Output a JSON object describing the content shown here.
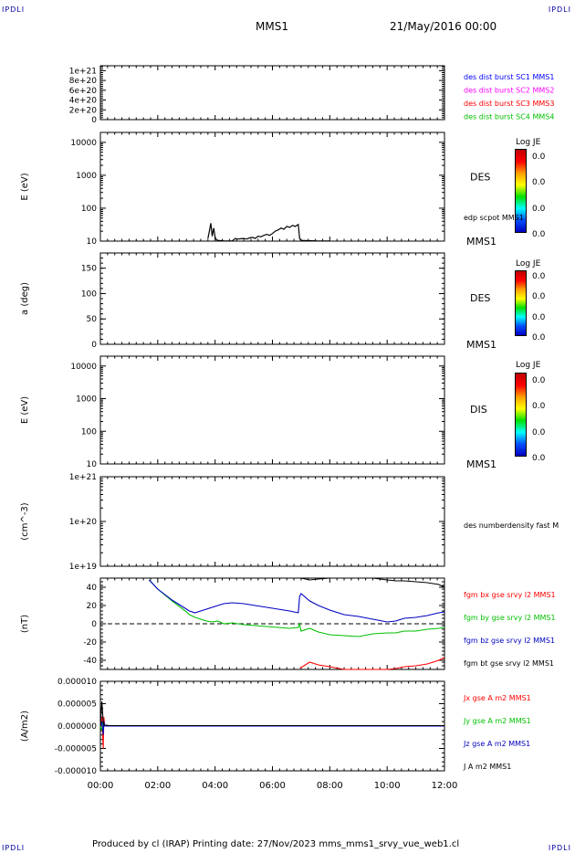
{
  "corners": {
    "top_left": "IPDLI",
    "top_right": "IPDLI",
    "bottom_left": "IPDLI",
    "bottom_right": "IPDLI"
  },
  "header": {
    "spacecraft": "MMS1",
    "date": "21/May/2016 00:00"
  },
  "footer": {
    "text": "Produced by cl (IRAP)   Printing date: 27/Nov/2023   mms_mms1_srvy_vue_web1.cl"
  },
  "time_axis": {
    "ticks": [
      "00:00",
      "02:00",
      "04:00",
      "06:00",
      "08:00",
      "10:00",
      "12:00"
    ],
    "range_hours": [
      0,
      12
    ]
  },
  "colorbars": [
    {
      "title": "Log JE",
      "values": [
        "0.0",
        "0.0",
        "0.0",
        "0.0"
      ]
    },
    {
      "title": "Log JE",
      "values": [
        "0.0",
        "0.0",
        "0.0",
        "0.0"
      ]
    },
    {
      "title": "Log JE",
      "values": [
        "0.0",
        "0.0",
        "0.0",
        "0.0"
      ]
    }
  ],
  "chart_data": [
    {
      "type": "line",
      "panel": "burst-indicator",
      "ylabel": "",
      "ylim": [
        0,
        1.1e+21
      ],
      "ticks": [
        "1e+21",
        "8e+20",
        "6e+20",
        "4e+20",
        "2e+20",
        "0"
      ],
      "tick_values": [
        1e+21,
        8e+20,
        6e+20,
        4e+20,
        2e+20,
        0
      ],
      "reference_line": {
        "y": 0,
        "style": "dashed"
      },
      "legend": [
        {
          "label": "des dist burst SC1 MMS1",
          "color": "#0000ff"
        },
        {
          "label": "des dist burst SC2 MMS2",
          "color": "#ff00ff"
        },
        {
          "label": "des dist burst SC3 MMS3",
          "color": "#ff0000"
        },
        {
          "label": "des dist burst SC4 MMS4",
          "color": "#00c000"
        }
      ]
    },
    {
      "type": "heatmap",
      "panel": "des-energy",
      "ylabel": "E (eV)",
      "yscale": "log",
      "ylim": [
        10,
        20000
      ],
      "ticks": [
        "10000",
        "1000",
        "100",
        "10"
      ],
      "tick_values": [
        10000,
        1000,
        100,
        10
      ],
      "species_label": "DES",
      "spacecraft_label": "MMS1",
      "overlay_label": "edp scpot MMS1",
      "overlay": {
        "name": "edp scpot MMS1",
        "color": "#000000",
        "x": [
          3.75,
          3.8,
          3.85,
          3.9,
          3.95,
          4.0,
          4.05,
          4.1,
          4.2,
          4.3,
          4.4,
          4.5,
          4.6,
          4.7,
          4.8,
          4.9,
          5.0,
          5.1,
          5.2,
          5.3,
          5.4,
          5.5,
          5.6,
          5.7,
          5.8,
          5.9,
          6.0,
          6.1,
          6.2,
          6.3,
          6.4,
          6.5,
          6.6,
          6.7,
          6.8,
          6.9,
          6.95,
          7.0,
          7.5,
          8.0
        ],
        "y": [
          12,
          20,
          35,
          14,
          25,
          13,
          11,
          10.5,
          10.3,
          10.2,
          10.1,
          10.1,
          10.2,
          12,
          11.5,
          11.8,
          12,
          11.5,
          12.5,
          13,
          12,
          14,
          13.5,
          15,
          16,
          15,
          17,
          20,
          22,
          25,
          23,
          28,
          26,
          30,
          28,
          32,
          12,
          10.5,
          10.2,
          10.1
        ]
      }
    },
    {
      "type": "heatmap",
      "panel": "des-pitch",
      "ylabel": "a (deg)",
      "ylim": [
        0,
        180
      ],
      "ticks": [
        "150",
        "100",
        "50",
        "0"
      ],
      "tick_values": [
        150,
        100,
        50,
        0
      ],
      "species_label": "DES",
      "spacecraft_label": "MMS1"
    },
    {
      "type": "heatmap",
      "panel": "dis-energy",
      "ylabel": "E (eV)",
      "yscale": "log",
      "ylim": [
        10,
        20000
      ],
      "ticks": [
        "10000",
        "1000",
        "100",
        "10"
      ],
      "tick_values": [
        10000,
        1000,
        100,
        10
      ],
      "species_label": "DIS",
      "spacecraft_label": "MMS1"
    },
    {
      "type": "line",
      "panel": "density",
      "ylabel": "(cm^-3)",
      "yscale": "log",
      "ylim": [
        1e+19,
        1e+21
      ],
      "ticks": [
        "1e+21",
        "1e+20",
        "1e+19"
      ],
      "tick_values": [
        1e+21,
        1e+20,
        1e+19
      ],
      "legend": [
        {
          "label": "des numberdensity fast M",
          "color": "#000000"
        }
      ]
    },
    {
      "type": "line",
      "panel": "fgm",
      "ylabel": "(nT)",
      "ylim": [
        -50,
        50
      ],
      "ticks": [
        "40",
        "20",
        "0",
        "-20",
        "-40"
      ],
      "tick_values": [
        40,
        20,
        0,
        -20,
        -40
      ],
      "reference_line": {
        "y": 0,
        "style": "dashed"
      },
      "legend": [
        {
          "label": "fgm bx gse srvy l2 MMS1",
          "color": "#ff0000"
        },
        {
          "label": "fgm by gse srvy l2 MMS1",
          "color": "#00c000"
        },
        {
          "label": "fgm bz gse srvy l2 MMS1",
          "color": "#0000c0"
        },
        {
          "label": "fgm bt gse srvy l2 MMS1",
          "color": "#000000"
        }
      ],
      "x": [
        1.7,
        2.0,
        2.5,
        3.0,
        3.1,
        3.3,
        3.5,
        3.7,
        3.9,
        4.1,
        4.3,
        4.6,
        5.0,
        5.4,
        5.8,
        6.2,
        6.6,
        6.9,
        6.95,
        7.0,
        7.3,
        7.6,
        8.0,
        8.5,
        9.0,
        9.5,
        10.0,
        10.3,
        10.6,
        11.0,
        11.4,
        11.8,
        12.0
      ],
      "series": [
        {
          "name": "fgm bx gse srvy l2 MMS1",
          "color": "#ff0000",
          "values": [
            null,
            null,
            null,
            null,
            null,
            null,
            null,
            null,
            null,
            null,
            null,
            null,
            null,
            null,
            null,
            null,
            null,
            null,
            -48,
            -48,
            -42,
            -45,
            -47,
            -50,
            -50,
            -50,
            -50,
            -49,
            -47,
            -46,
            -44,
            -40,
            -37
          ]
        },
        {
          "name": "fgm by gse srvy l2 MMS1",
          "color": "#00c000",
          "values": [
            48,
            38,
            25,
            13,
            10,
            7,
            5,
            3,
            2,
            3,
            0,
            1,
            -1,
            -2,
            -3,
            -4,
            -5,
            -4,
            0,
            -8,
            -5,
            -9,
            -12,
            -13,
            -14,
            -11,
            -10,
            -10,
            -8,
            -8,
            -6,
            -5,
            -4
          ]
        },
        {
          "name": "fgm bz gse srvy l2 MMS1",
          "color": "#0000c0",
          "values": [
            48,
            38,
            26,
            16,
            14,
            12,
            14,
            16,
            18,
            20,
            22,
            23,
            22,
            20,
            18,
            16,
            14,
            12,
            30,
            33,
            25,
            20,
            15,
            10,
            8,
            5,
            2,
            3,
            6,
            7,
            9,
            12,
            13
          ]
        },
        {
          "name": "fgm bt gse srvy l2 MMS1",
          "color": "#000000",
          "values": [
            null,
            null,
            null,
            null,
            null,
            null,
            null,
            null,
            null,
            null,
            null,
            null,
            null,
            null,
            null,
            null,
            null,
            null,
            52,
            50,
            48,
            49,
            50,
            51,
            51,
            50,
            48,
            47,
            47,
            46,
            45,
            43,
            40
          ]
        }
      ]
    },
    {
      "type": "line",
      "panel": "current-density",
      "ylabel": "(A/m2)",
      "ylim": [
        -1e-05,
        1e-05
      ],
      "ticks": [
        "0.000010",
        "0.000005",
        "0.000000",
        "-0.000005",
        "-0.000010"
      ],
      "tick_values": [
        1e-05,
        5e-06,
        0,
        -5e-06,
        -1e-05
      ],
      "legend": [
        {
          "label": "Jx gse A m2 MMS1",
          "color": "#ff0000"
        },
        {
          "label": "Jy gse A m2 MMS1",
          "color": "#00c000"
        },
        {
          "label": "Jz gse A m2 MMS1",
          "color": "#0000c0"
        },
        {
          "label": "J A m2 MMS1",
          "color": "#000000"
        }
      ],
      "x": [
        0.0,
        0.05,
        0.1,
        0.12,
        0.15,
        0.2,
        0.3,
        1.0,
        2.0,
        4.0,
        6.0,
        8.0,
        10.0,
        12.0
      ],
      "series": [
        {
          "name": "Jx gse A m2 MMS1",
          "color": "#ff0000",
          "values": [
            0,
            2e-06,
            -5e-06,
            2e-06,
            0,
            0,
            0,
            0,
            0,
            0,
            0,
            0,
            0,
            0
          ]
        },
        {
          "name": "Jy gse A m2 MMS1",
          "color": "#00c000",
          "values": [
            0,
            -1e-06,
            1e-06,
            0,
            0,
            0,
            0,
            0,
            0,
            0,
            0,
            0,
            0,
            0
          ]
        },
        {
          "name": "Jz gse A m2 MMS1",
          "color": "#0000c0",
          "values": [
            0,
            1e-06,
            -2e-06,
            1e-06,
            0,
            0,
            0,
            0,
            0,
            0,
            0,
            0,
            0,
            0
          ]
        },
        {
          "name": "J A m2 MMS1",
          "color": "#000000",
          "values": [
            0,
            5.5e-06,
            1e-06,
            3e-07,
            2e-07,
            2e-07,
            1e-07,
            1e-07,
            1e-07,
            1e-07,
            1e-07,
            1e-07,
            1e-07,
            1e-07
          ]
        }
      ]
    }
  ]
}
